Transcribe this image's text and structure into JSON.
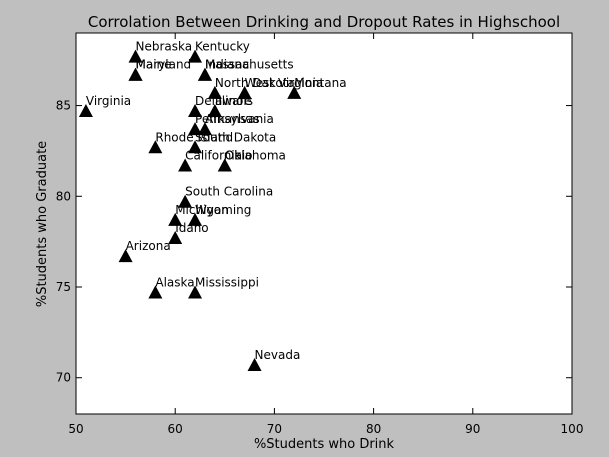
{
  "chart_data": {
    "type": "scatter",
    "title": "Corrolation Between Drinking and Dropout Rates in Highschool",
    "xlabel": "%Students who Drink",
    "ylabel": "%Students who Graduate",
    "xlim": [
      50,
      100
    ],
    "ylim": [
      68,
      89
    ],
    "xticks": [
      50,
      60,
      70,
      80,
      90,
      100
    ],
    "yticks": [
      70,
      75,
      80,
      85
    ],
    "xtick_labels": [
      "50",
      "60",
      "70",
      "80",
      "90",
      "100"
    ],
    "ytick_labels": [
      "70",
      "75",
      "80",
      "85"
    ],
    "grid": false,
    "legend": "none",
    "marker": "triangle",
    "marker_color": "#000000",
    "background_color": "#ffffff",
    "figure_color": "#bfbfbf",
    "points": [
      {
        "label": "Nebraska",
        "x": 56,
        "y": 87.7
      },
      {
        "label": "Kentucky",
        "x": 62,
        "y": 87.7
      },
      {
        "label": "Maine",
        "x": 56,
        "y": 86.7
      },
      {
        "label": "Maryland",
        "x": 56,
        "y": 86.7
      },
      {
        "label": "Indiana",
        "x": 63,
        "y": 86.7
      },
      {
        "label": "Massachusetts",
        "x": 63,
        "y": 86.7
      },
      {
        "label": "North Dakota",
        "x": 64,
        "y": 85.7
      },
      {
        "label": "West Virginia",
        "x": 67,
        "y": 85.7
      },
      {
        "label": "Montana",
        "x": 72,
        "y": 85.7
      },
      {
        "label": "Virginia",
        "x": 51,
        "y": 84.7
      },
      {
        "label": "Delaware",
        "x": 62,
        "y": 84.7
      },
      {
        "label": "Illinois",
        "x": 64,
        "y": 84.7
      },
      {
        "label": "Pennsylvania",
        "x": 62,
        "y": 83.7
      },
      {
        "label": "Arkansas",
        "x": 63,
        "y": 83.7
      },
      {
        "label": "Rhode Island",
        "x": 58,
        "y": 82.7
      },
      {
        "label": "South Dakota",
        "x": 62,
        "y": 82.7
      },
      {
        "label": "California",
        "x": 61,
        "y": 81.7
      },
      {
        "label": "Ohio",
        "x": 65,
        "y": 81.7
      },
      {
        "label": "Oklahoma",
        "x": 65,
        "y": 81.7
      },
      {
        "label": "South Carolina",
        "x": 61,
        "y": 79.7
      },
      {
        "label": "Michigan",
        "x": 60,
        "y": 78.7
      },
      {
        "label": "Wyoming",
        "x": 62,
        "y": 78.7
      },
      {
        "label": "Idaho",
        "x": 60,
        "y": 77.7
      },
      {
        "label": "Arizona",
        "x": 55,
        "y": 76.7
      },
      {
        "label": "Alaska",
        "x": 58,
        "y": 74.7
      },
      {
        "label": "Mississippi",
        "x": 62,
        "y": 74.7
      },
      {
        "label": "Nevada",
        "x": 68,
        "y": 70.7
      }
    ]
  }
}
